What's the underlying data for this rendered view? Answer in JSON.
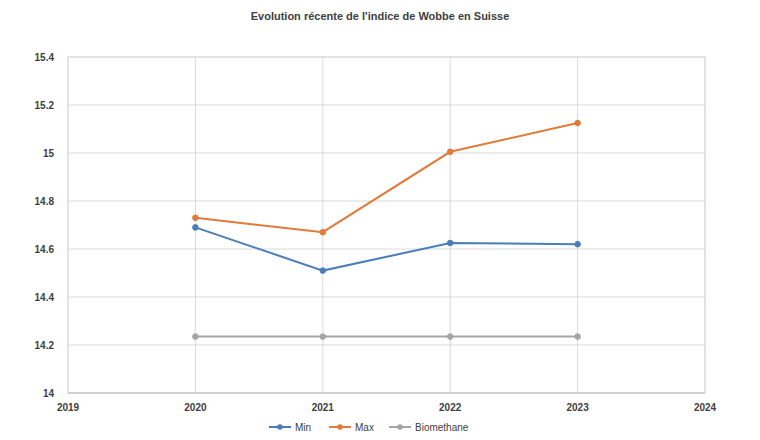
{
  "chart_data": {
    "type": "line",
    "title": "Evolution récente de l'indice de Wobbe en Suisse",
    "x": [
      2020,
      2021,
      2022,
      2023
    ],
    "series": [
      {
        "name": "Min",
        "color": "#4a7ebb",
        "marker": "circle",
        "values": [
          14.69,
          14.51,
          14.625,
          14.62
        ]
      },
      {
        "name": "Max",
        "color": "#e07b39",
        "marker": "circle",
        "values": [
          14.73,
          14.67,
          15.005,
          15.125
        ]
      },
      {
        "name": "Biomethane",
        "color": "#a5a5a5",
        "marker": "circle",
        "values": [
          14.235,
          14.235,
          14.235,
          14.235
        ]
      }
    ],
    "xlim": [
      2019,
      2024
    ],
    "xticks": [
      2019,
      2020,
      2021,
      2022,
      2023,
      2024
    ],
    "ylim": [
      14,
      15.4
    ],
    "yticks": [
      14,
      14.2,
      14.4,
      14.6,
      14.8,
      15,
      15.2,
      15.4
    ],
    "grid": true,
    "legend": "bottom"
  }
}
